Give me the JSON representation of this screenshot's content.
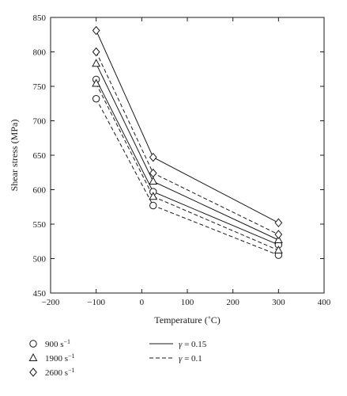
{
  "chart_data": {
    "type": "scatter",
    "xlabel": "Temperature (˚C)",
    "ylabel": "Shear stress (MPa)",
    "xlim": [
      -200,
      400
    ],
    "ylim": [
      450,
      850
    ],
    "xticks": [
      "−200",
      "−100",
      "0",
      "100",
      "200",
      "300",
      "400"
    ],
    "yticks": [
      "450",
      "500",
      "550",
      "600",
      "650",
      "700",
      "750",
      "800",
      "850"
    ],
    "grid": false,
    "legend_position": "bottom",
    "marker_legend": [
      {
        "value": "900",
        "unit": "s",
        "exponent": "−1",
        "marker": "circle"
      },
      {
        "value": "1900",
        "unit": "s",
        "exponent": "−1",
        "marker": "triangle"
      },
      {
        "value": "2600",
        "unit": "s",
        "exponent": "−1",
        "marker": "diamond"
      }
    ],
    "line_legend": [
      {
        "symbol": "γ",
        "text": " = 0.15",
        "style": "solid"
      },
      {
        "symbol": "γ",
        "text": " = 0.1",
        "style": "dashed"
      }
    ],
    "series": [
      {
        "marker": "circle",
        "line": "solid",
        "x": [
          -100,
          25,
          300
        ],
        "y": [
          760,
          597,
          520
        ]
      },
      {
        "marker": "circle",
        "line": "dashed",
        "x": [
          -100,
          25,
          300
        ],
        "y": [
          732,
          577,
          505
        ]
      },
      {
        "marker": "triangle",
        "line": "solid",
        "x": [
          -100,
          25,
          300
        ],
        "y": [
          783,
          612,
          527
        ]
      },
      {
        "marker": "triangle",
        "line": "dashed",
        "x": [
          -100,
          25,
          300
        ],
        "y": [
          754,
          590,
          512
        ]
      },
      {
        "marker": "diamond",
        "line": "solid",
        "x": [
          -100,
          25,
          300
        ],
        "y": [
          831,
          647,
          552
        ]
      },
      {
        "marker": "diamond",
        "line": "dashed",
        "x": [
          -100,
          25,
          300
        ],
        "y": [
          800,
          624,
          535
        ]
      }
    ]
  }
}
